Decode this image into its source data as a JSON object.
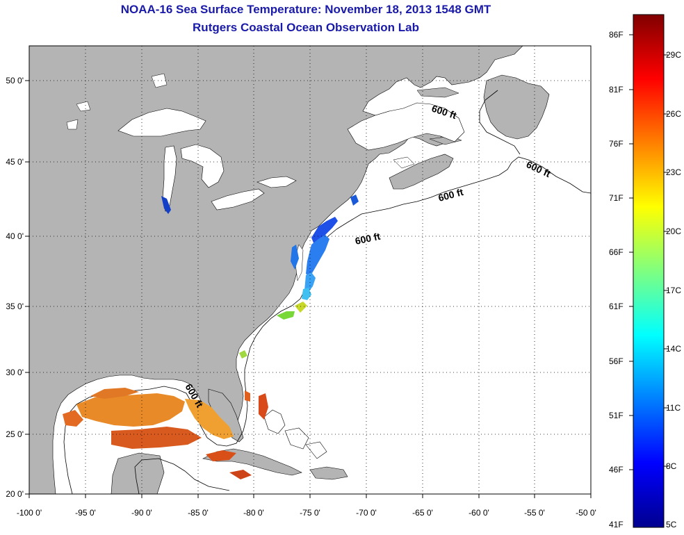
{
  "header": {
    "title": "NOAA-16 Sea Surface Temperature:  November 18, 2013 1548 GMT",
    "subtitle": "Rutgers Coastal Ocean Observation Lab"
  },
  "map": {
    "lon_range": [
      -100,
      -50
    ],
    "lat_range": [
      20,
      52.5
    ],
    "x_ticks": [
      "-100 0'",
      "-95 0'",
      "-90 0'",
      "-85 0'",
      "-80 0'",
      "-75 0'",
      "-70 0'",
      "-65 0'",
      "-60 0'",
      "-55 0'",
      "-50 0'"
    ],
    "y_ticks": [
      "50 0'",
      "45 0'",
      "40 0'",
      "35 0'",
      "30 0'",
      "25 0'",
      "20 0'"
    ],
    "grid": "dotted",
    "land_color": "#b4b4b4",
    "water_color": "#ffffff",
    "contour_labels": [
      "600 ft",
      "600 ft",
      "600 ft",
      "600 ft",
      "600 ft"
    ]
  },
  "colorbar": {
    "fahrenheit": [
      "86F",
      "81F",
      "76F",
      "71F",
      "66F",
      "61F",
      "56F",
      "51F",
      "46F",
      "41F"
    ],
    "celsius": [
      "29C",
      "26C",
      "23C",
      "20C",
      "17C",
      "14C",
      "11C",
      "8C",
      "5C"
    ]
  }
}
